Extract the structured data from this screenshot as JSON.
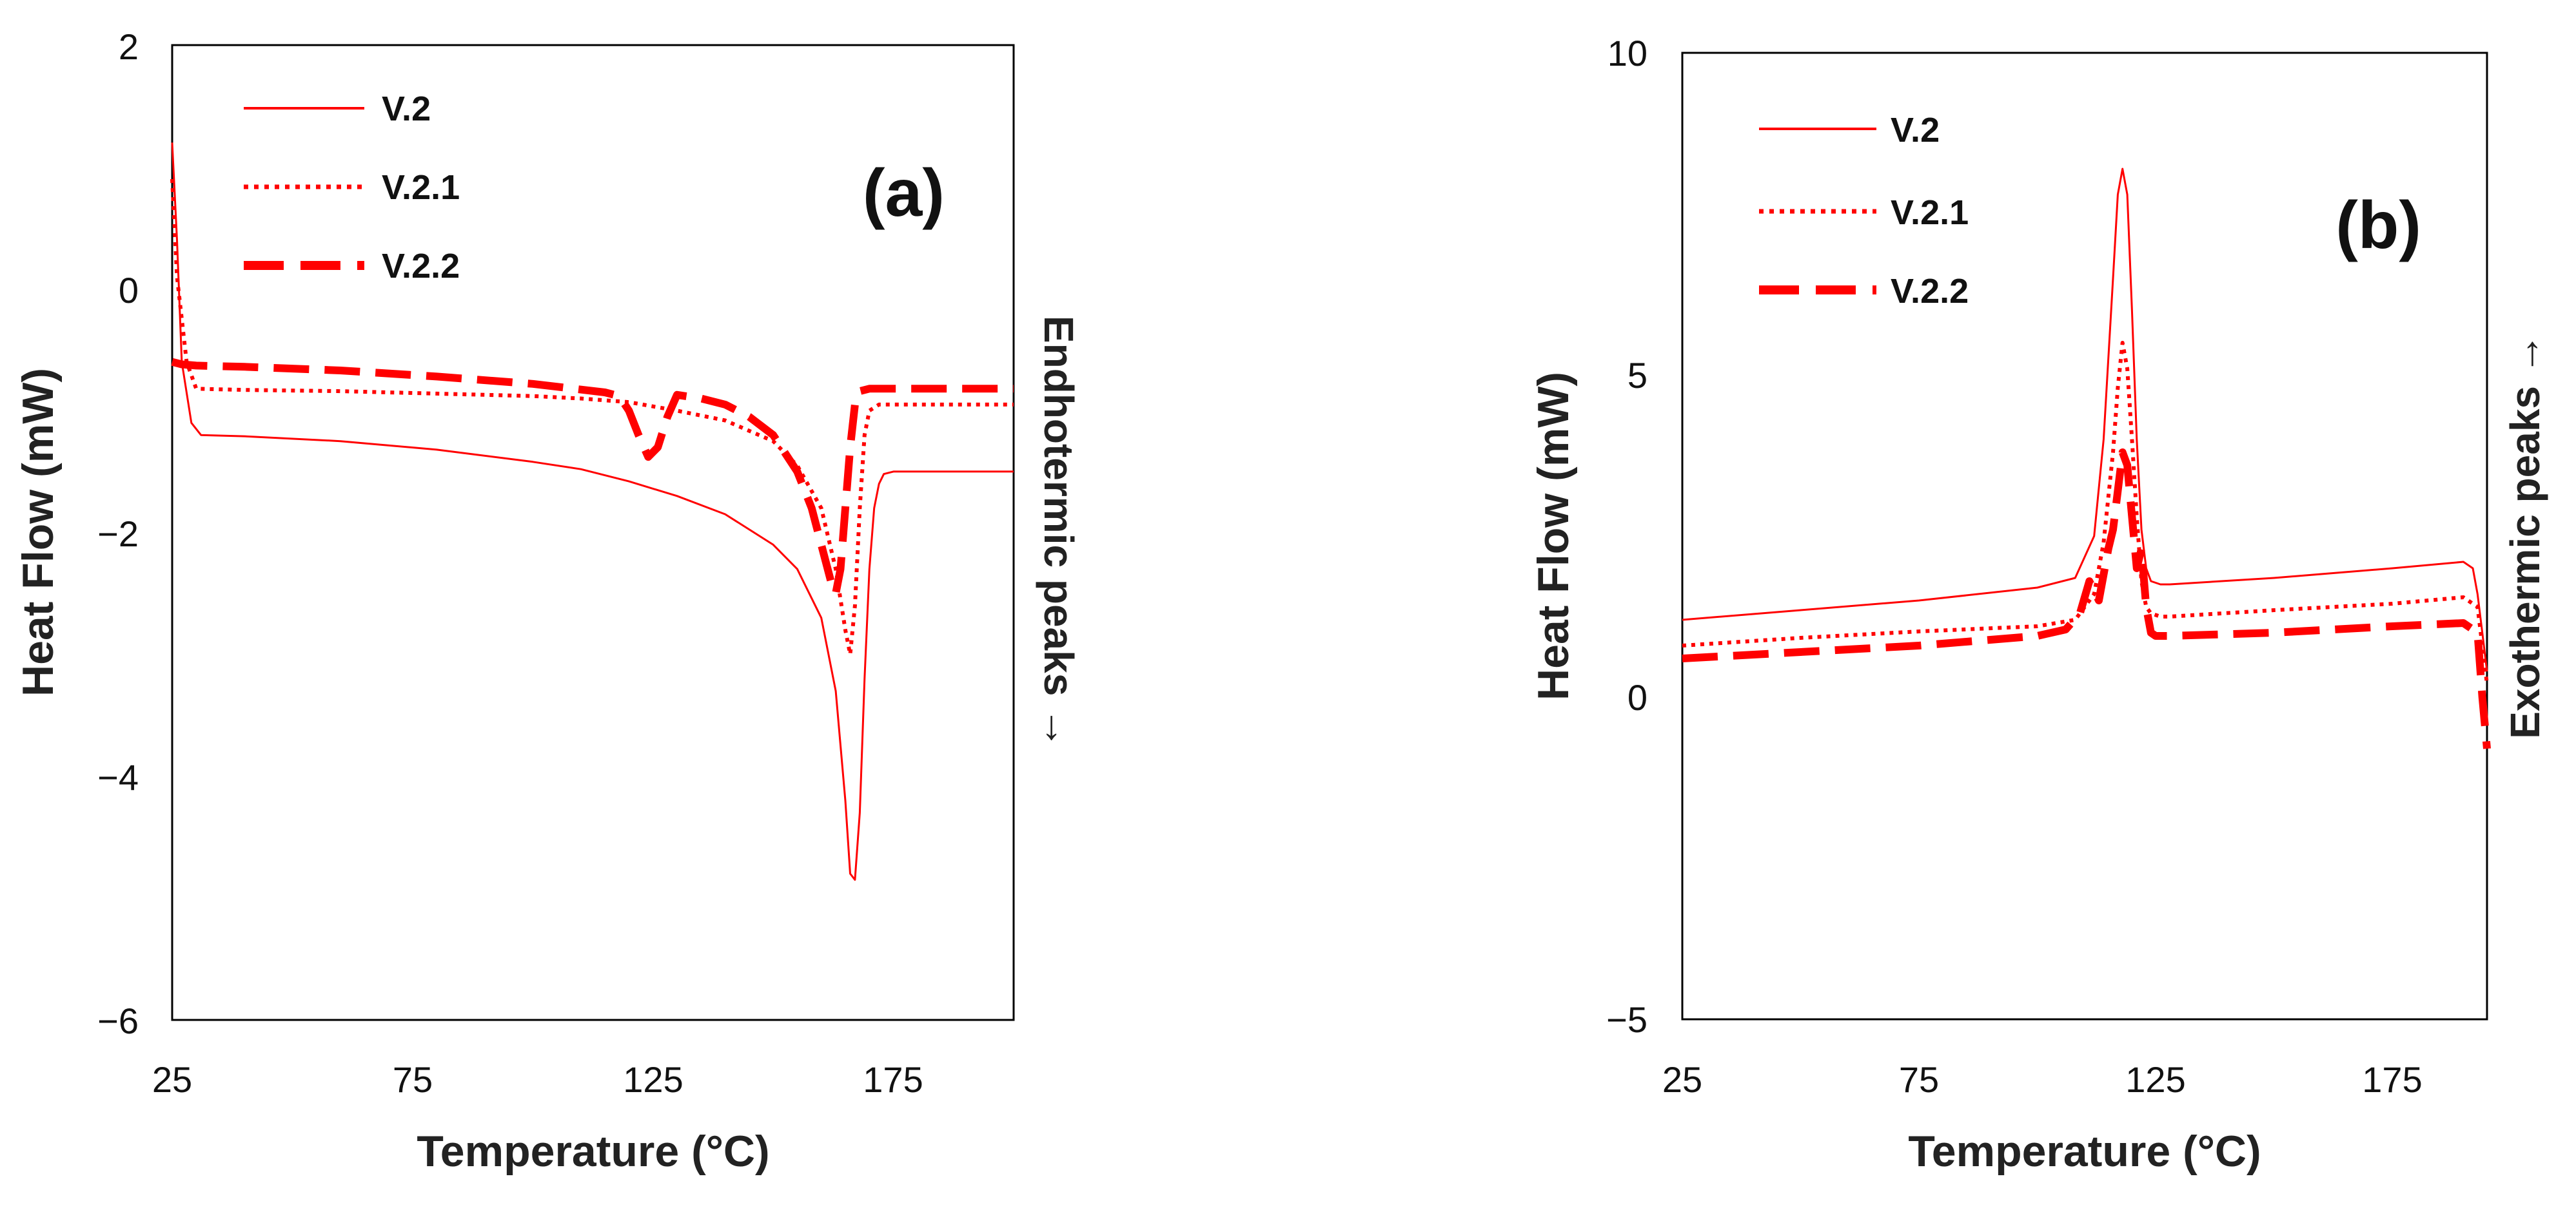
{
  "colors": {
    "series": "#ff0000",
    "axis": "#000000",
    "text": "#111111"
  },
  "chart_data": [
    {
      "type": "line",
      "panel_label": "(a)",
      "title": "",
      "xlabel": "Temperature (°C)",
      "ylabel": "Heat Flow (mW)",
      "side_annotation": "Endhotermic peaks →",
      "xlim": [
        25,
        200
      ],
      "ylim": [
        -6,
        2
      ],
      "xticks": [
        "25",
        "75",
        "125",
        "175"
      ],
      "yticks": [
        "2",
        "0",
        "−2",
        "−4",
        "−6"
      ],
      "legend": [
        "V.2",
        "V.2.1",
        "V.2.2"
      ],
      "legend_position": "top-left",
      "series": [
        {
          "name": "V.2",
          "style": "solid",
          "x": [
            25,
            26,
            27,
            29,
            31,
            40,
            60,
            80,
            100,
            110,
            120,
            130,
            140,
            150,
            155,
            160,
            163,
            165,
            166,
            167,
            168,
            169,
            170,
            171,
            172,
            173,
            175,
            180,
            190,
            200
          ],
          "y": [
            1.2,
            0.4,
            -0.6,
            -1.1,
            -1.2,
            -1.21,
            -1.25,
            -1.32,
            -1.42,
            -1.48,
            -1.58,
            -1.7,
            -1.85,
            -2.1,
            -2.3,
            -2.7,
            -3.3,
            -4.2,
            -4.8,
            -4.85,
            -4.3,
            -3.2,
            -2.3,
            -1.8,
            -1.6,
            -1.52,
            -1.5,
            -1.5,
            -1.5,
            -1.5
          ]
        },
        {
          "name": "V.2.1",
          "style": "dotted",
          "x": [
            25,
            26,
            28,
            30,
            40,
            60,
            80,
            100,
            110,
            120,
            130,
            140,
            150,
            155,
            160,
            163,
            165,
            166,
            167,
            168,
            169,
            170,
            172,
            175,
            180,
            190,
            200
          ],
          "y": [
            0.9,
            0.1,
            -0.6,
            -0.82,
            -0.83,
            -0.84,
            -0.86,
            -0.88,
            -0.9,
            -0.93,
            -1.0,
            -1.08,
            -1.25,
            -1.45,
            -1.8,
            -2.3,
            -2.8,
            -3.0,
            -2.6,
            -1.8,
            -1.2,
            -1.0,
            -0.95,
            -0.95,
            -0.95,
            -0.95,
            -0.95
          ]
        },
        {
          "name": "V.2.2",
          "style": "dashed",
          "x": [
            25,
            27,
            30,
            40,
            60,
            80,
            100,
            115,
            118,
            120,
            122,
            124,
            126,
            128,
            130,
            135,
            140,
            145,
            150,
            155,
            158,
            160,
            162,
            163,
            164,
            165,
            166,
            167,
            168,
            170,
            175,
            180,
            190,
            200
          ],
          "y": [
            -0.6,
            -0.62,
            -0.63,
            -0.64,
            -0.67,
            -0.72,
            -0.78,
            -0.85,
            -0.88,
            -1.0,
            -1.2,
            -1.38,
            -1.3,
            -1.05,
            -0.87,
            -0.9,
            -0.95,
            -1.05,
            -1.2,
            -1.5,
            -1.8,
            -2.1,
            -2.4,
            -2.5,
            -2.3,
            -1.8,
            -1.3,
            -0.95,
            -0.84,
            -0.82,
            -0.82,
            -0.82,
            -0.82,
            -0.82
          ]
        }
      ]
    },
    {
      "type": "line",
      "panel_label": "(b)",
      "title": "",
      "xlabel": "Temperature (°C)",
      "ylabel": "Heat Flow (mW)",
      "side_annotation": "Exothermic peaks →",
      "xlim": [
        25,
        195
      ],
      "ylim": [
        -5,
        10
      ],
      "xticks": [
        "25",
        "75",
        "125",
        "175"
      ],
      "yticks": [
        "10",
        "5",
        "0",
        "−5"
      ],
      "legend": [
        "V.2",
        "V.2.1",
        "V.2.2"
      ],
      "legend_position": "top-left",
      "series": [
        {
          "name": "V.2",
          "style": "solid",
          "x": [
            25,
            50,
            75,
            100,
            108,
            112,
            114,
            116,
            117,
            118,
            119,
            120,
            121,
            122,
            123,
            124,
            126,
            128,
            150,
            175,
            190,
            192,
            193,
            194,
            195
          ],
          "y": [
            1.2,
            1.35,
            1.5,
            1.7,
            1.85,
            2.5,
            4.0,
            6.5,
            7.8,
            8.2,
            7.8,
            6.0,
            4.0,
            2.6,
            2.0,
            1.8,
            1.75,
            1.75,
            1.85,
            2.0,
            2.1,
            2.0,
            1.6,
            1.0,
            0.4
          ]
        },
        {
          "name": "V.2.1",
          "style": "dotted",
          "x": [
            25,
            50,
            75,
            100,
            108,
            112,
            114,
            116,
            117,
            118,
            119,
            120,
            121,
            122,
            123,
            124,
            126,
            128,
            150,
            175,
            190,
            193,
            194,
            195
          ],
          "y": [
            0.8,
            0.92,
            1.02,
            1.1,
            1.2,
            1.6,
            2.4,
            3.8,
            4.8,
            5.5,
            5.1,
            4.0,
            2.8,
            1.8,
            1.4,
            1.3,
            1.25,
            1.25,
            1.35,
            1.45,
            1.55,
            1.4,
            0.8,
            0.2
          ]
        },
        {
          "name": "V.2.2",
          "style": "dashed",
          "x": [
            25,
            50,
            75,
            100,
            106,
            109,
            111,
            113,
            115,
            116,
            117,
            118,
            119,
            120,
            121,
            122,
            123,
            124,
            125,
            126,
            128,
            150,
            175,
            190,
            193,
            194,
            195
          ],
          "y": [
            0.6,
            0.7,
            0.8,
            0.95,
            1.05,
            1.3,
            1.8,
            1.5,
            2.3,
            2.6,
            3.2,
            3.8,
            3.6,
            2.8,
            2.0,
            2.3,
            1.4,
            1.0,
            0.95,
            0.95,
            0.95,
            1.0,
            1.1,
            1.15,
            1.0,
            0.0,
            -0.8
          ]
        }
      ]
    }
  ]
}
